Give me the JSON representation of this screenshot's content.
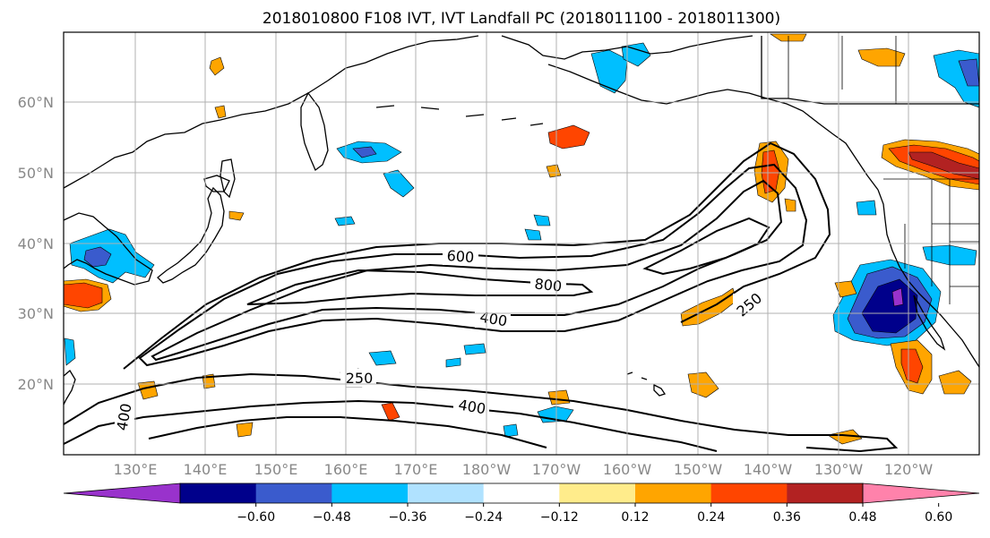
{
  "title": "2018010800 F108 IVT, IVT Landfall PC (2018011100 - 2018011300)",
  "map": {
    "lat_labels": [
      "60°N",
      "50°N",
      "40°N",
      "30°N",
      "20°N"
    ],
    "lon_labels": [
      "130°E",
      "140°E",
      "150°E",
      "160°E",
      "170°E",
      "180°W",
      "170°W",
      "160°W",
      "150°W",
      "140°W",
      "130°W",
      "120°W"
    ],
    "contour_labels": [
      "600",
      "800",
      "400",
      "250",
      "250",
      "400",
      "400"
    ]
  },
  "colorbar": {
    "colors": [
      "#9932cc",
      "#00008b",
      "#3a5bcd",
      "#00bfff",
      "#b0e2ff",
      "#ffffff",
      "#ffec8b",
      "#ffa500",
      "#ff4500",
      "#b22222",
      "#ff82ab"
    ],
    "tick_labels": [
      "−0.60",
      "−0.48",
      "−0.36",
      "−0.24",
      "−0.12",
      "0.12",
      "0.24",
      "0.36",
      "0.48",
      "0.60"
    ]
  }
}
